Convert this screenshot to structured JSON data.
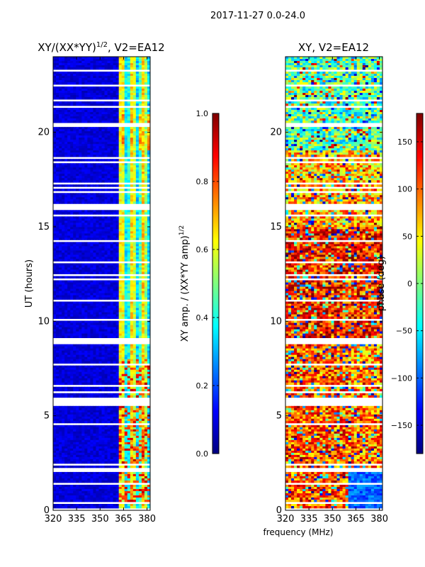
{
  "suptitle": "2017-11-27 0.0-24.0",
  "xlabel_common": "frequency (MHz)",
  "colormap": [
    "#00007f",
    "#0000ff",
    "#007fff",
    "#00ffff",
    "#7fff7f",
    "#ffff00",
    "#ff7f00",
    "#ff0000",
    "#7f0000"
  ],
  "chart_data": [
    {
      "type": "heatmap",
      "title_main": "XY/(XX*YY)",
      "title_exp": "1/2",
      "title_suffix": ", V2=EA12",
      "ylabel": "UT (hours)",
      "xlim": [
        320,
        382
      ],
      "ylim": [
        0,
        24
      ],
      "xticks": [
        320,
        335,
        350,
        365,
        380
      ],
      "yticks": [
        0,
        5,
        10,
        15,
        20
      ],
      "colorbar": {
        "label_main": "XY amp. / (XX*YY amp)",
        "label_exp": "1/2",
        "range": [
          0.0,
          1.0
        ],
        "ticks": [
          0.0,
          0.2,
          0.4,
          0.6,
          0.8,
          1.0
        ],
        "tick_labels": [
          "0.0",
          "0.2",
          "0.4",
          "0.6",
          "0.8",
          "1.0"
        ]
      }
    },
    {
      "type": "heatmap",
      "title_main": "XY",
      "title_exp": "",
      "title_suffix": ", V2=EA12",
      "ylabel": "",
      "xlim": [
        320,
        382
      ],
      "ylim": [
        0,
        24
      ],
      "xticks": [
        320,
        335,
        350,
        365,
        380
      ],
      "yticks": [
        0,
        5,
        10,
        15,
        20
      ],
      "colorbar": {
        "label_main": "phase (deg)",
        "label_exp": "",
        "range": [
          -180,
          180
        ],
        "ticks": [
          -150,
          -100,
          -50,
          0,
          50,
          100,
          150
        ],
        "tick_labels": [
          "−150",
          "−100",
          "−50",
          "0",
          "50",
          "100",
          "150"
        ]
      }
    }
  ]
}
